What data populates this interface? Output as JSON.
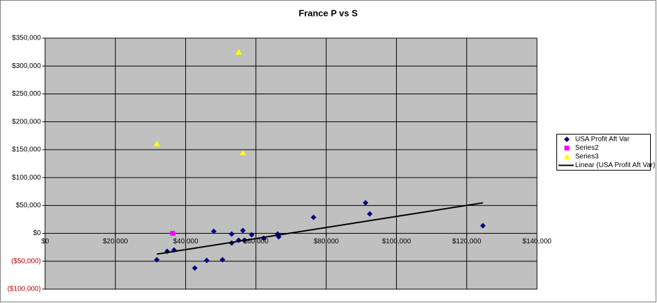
{
  "chart_data": {
    "type": "scatter",
    "title": "France  P vs S",
    "xlim": [
      0,
      140000
    ],
    "xticks": [
      {
        "value": 0,
        "label": "$0"
      },
      {
        "value": 20000,
        "label": "$20,000"
      },
      {
        "value": 40000,
        "label": "$40,000"
      },
      {
        "value": 60000,
        "label": "$60,000"
      },
      {
        "value": 80000,
        "label": "$80,000"
      },
      {
        "value": 100000,
        "label": "$100,000"
      },
      {
        "value": 120000,
        "label": "$120,000"
      },
      {
        "value": 140000,
        "label": "$140,000"
      }
    ],
    "ylim": [
      -100000,
      350000
    ],
    "yticks": [
      {
        "value": -100000,
        "label": "($100,000)"
      },
      {
        "value": -50000,
        "label": "($50,000)"
      },
      {
        "value": 0,
        "label": "$0"
      },
      {
        "value": 50000,
        "label": "$50,000"
      },
      {
        "value": 100000,
        "label": "$100,000"
      },
      {
        "value": 150000,
        "label": "$150,000"
      },
      {
        "value": 200000,
        "label": "$200,000"
      },
      {
        "value": 250000,
        "label": "$250,000"
      },
      {
        "value": 300000,
        "label": "$300,000"
      },
      {
        "value": 350000,
        "label": "$350,000"
      }
    ],
    "grid": true,
    "legend": "right",
    "series": [
      {
        "name": "USA Profit Aft Var",
        "color": "#000080",
        "marker": "diamond",
        "x": [
          31800,
          34750,
          36700,
          42600,
          46000,
          48000,
          50500,
          53100,
          53100,
          55100,
          56300,
          56700,
          58800,
          62200,
          66200,
          66500,
          76400,
          91200,
          92400,
          124600
        ],
        "values": [
          -47300,
          -32300,
          -29900,
          -62200,
          -48500,
          3700,
          -47300,
          -1200,
          -17400,
          -12400,
          5000,
          -12400,
          -2500,
          -8700,
          -1200,
          -6200,
          28600,
          54700,
          34800,
          13700
        ]
      },
      {
        "name": "Series2",
        "color": "#ff00ff",
        "marker": "square",
        "x": [
          36300
        ],
        "values": [
          0
        ]
      },
      {
        "name": "Series3",
        "color": "#ffff00",
        "marker": "triangle",
        "x": [
          31800,
          55100,
          56300
        ],
        "values": [
          160400,
          324600,
          144300
        ]
      }
    ],
    "trendline": {
      "name": "Linear (USA Profit Aft Var)",
      "color": "#000000",
      "x": [
        31800,
        124600
      ],
      "values": [
        -37300,
        54700
      ]
    }
  }
}
